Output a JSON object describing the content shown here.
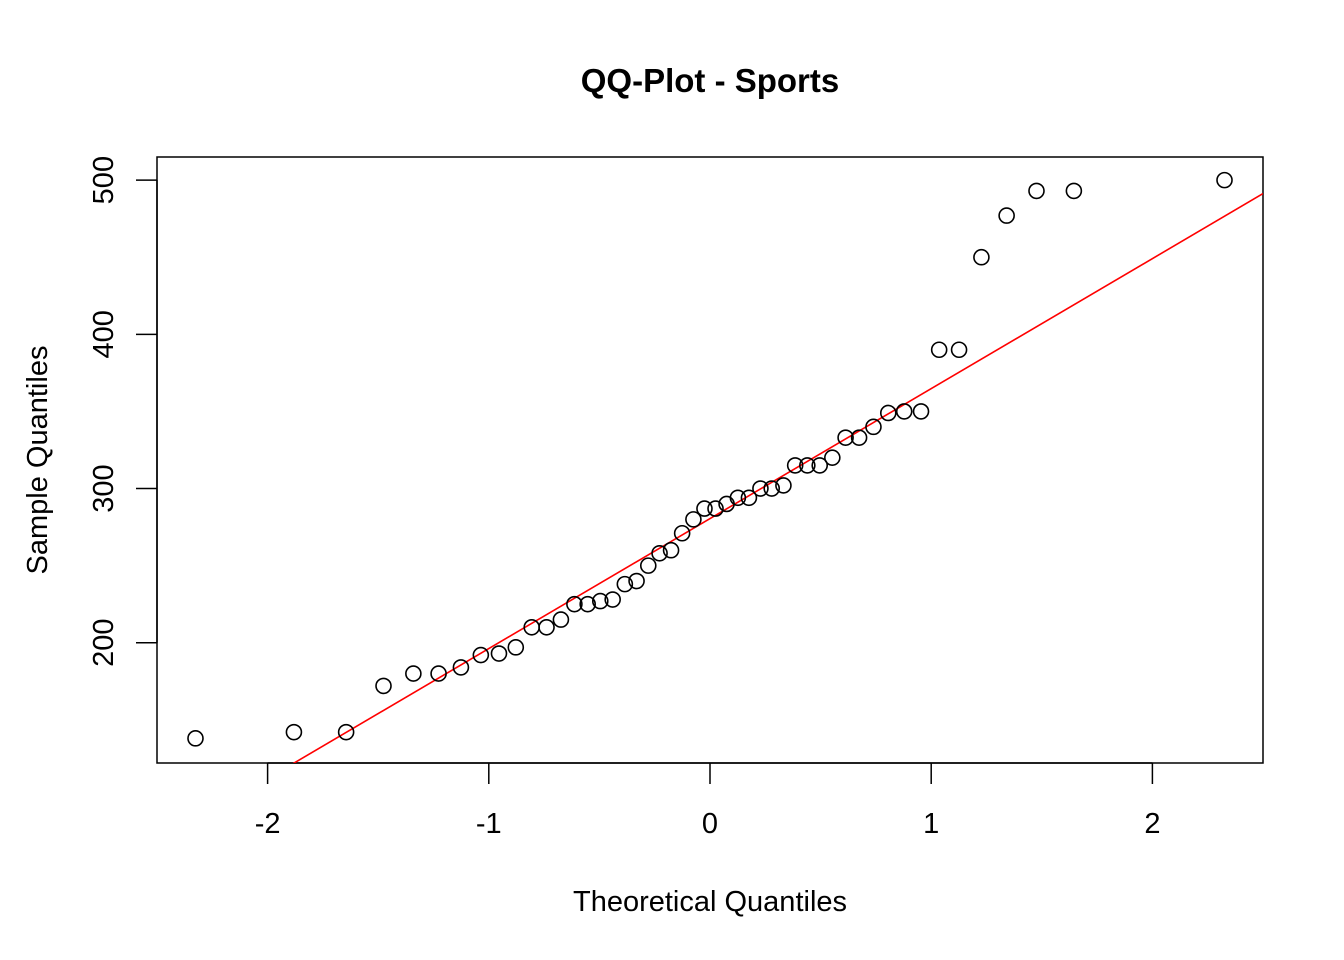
{
  "chart_data": {
    "type": "scatter",
    "title": "QQ-Plot - Sports",
    "xlabel": "Theoretical Quantiles",
    "ylabel": "Sample Quantiles",
    "xlim": [
      -2.5,
      2.5
    ],
    "ylim": [
      122,
      515
    ],
    "x_ticks": [
      -2,
      -1,
      0,
      1,
      2
    ],
    "y_ticks": [
      200,
      300,
      400,
      500
    ],
    "grid": false,
    "legend": "none",
    "point_style": "open circle",
    "point_color": "#000000",
    "line_color": "#ff0000",
    "reference_line": {
      "intercept": 280.5,
      "slope": 84.3
    },
    "points": [
      {
        "x": -2.326,
        "y": 138
      },
      {
        "x": -1.881,
        "y": 142
      },
      {
        "x": -1.645,
        "y": 142
      },
      {
        "x": -1.476,
        "y": 172
      },
      {
        "x": -1.341,
        "y": 180
      },
      {
        "x": -1.227,
        "y": 180
      },
      {
        "x": -1.126,
        "y": 184
      },
      {
        "x": -1.036,
        "y": 192
      },
      {
        "x": -0.954,
        "y": 193
      },
      {
        "x": -0.878,
        "y": 197
      },
      {
        "x": -0.806,
        "y": 210
      },
      {
        "x": -0.739,
        "y": 210
      },
      {
        "x": -0.674,
        "y": 215
      },
      {
        "x": -0.613,
        "y": 225
      },
      {
        "x": -0.553,
        "y": 225
      },
      {
        "x": -0.496,
        "y": 227
      },
      {
        "x": -0.44,
        "y": 228
      },
      {
        "x": -0.385,
        "y": 238
      },
      {
        "x": -0.332,
        "y": 240
      },
      {
        "x": -0.279,
        "y": 250
      },
      {
        "x": -0.228,
        "y": 258
      },
      {
        "x": -0.176,
        "y": 260
      },
      {
        "x": -0.126,
        "y": 271
      },
      {
        "x": -0.075,
        "y": 280
      },
      {
        "x": -0.025,
        "y": 287
      },
      {
        "x": 0.025,
        "y": 287
      },
      {
        "x": 0.075,
        "y": 290
      },
      {
        "x": 0.126,
        "y": 294
      },
      {
        "x": 0.176,
        "y": 294
      },
      {
        "x": 0.228,
        "y": 300
      },
      {
        "x": 0.279,
        "y": 300
      },
      {
        "x": 0.332,
        "y": 302
      },
      {
        "x": 0.385,
        "y": 315
      },
      {
        "x": 0.44,
        "y": 315
      },
      {
        "x": 0.496,
        "y": 315
      },
      {
        "x": 0.553,
        "y": 320
      },
      {
        "x": 0.613,
        "y": 333
      },
      {
        "x": 0.674,
        "y": 333
      },
      {
        "x": 0.739,
        "y": 340
      },
      {
        "x": 0.806,
        "y": 349
      },
      {
        "x": 0.878,
        "y": 350
      },
      {
        "x": 0.954,
        "y": 350
      },
      {
        "x": 1.036,
        "y": 390
      },
      {
        "x": 1.126,
        "y": 390
      },
      {
        "x": 1.227,
        "y": 450
      },
      {
        "x": 1.341,
        "y": 477
      },
      {
        "x": 1.476,
        "y": 493
      },
      {
        "x": 1.645,
        "y": 493
      },
      {
        "x": 2.326,
        "y": 500
      }
    ]
  }
}
